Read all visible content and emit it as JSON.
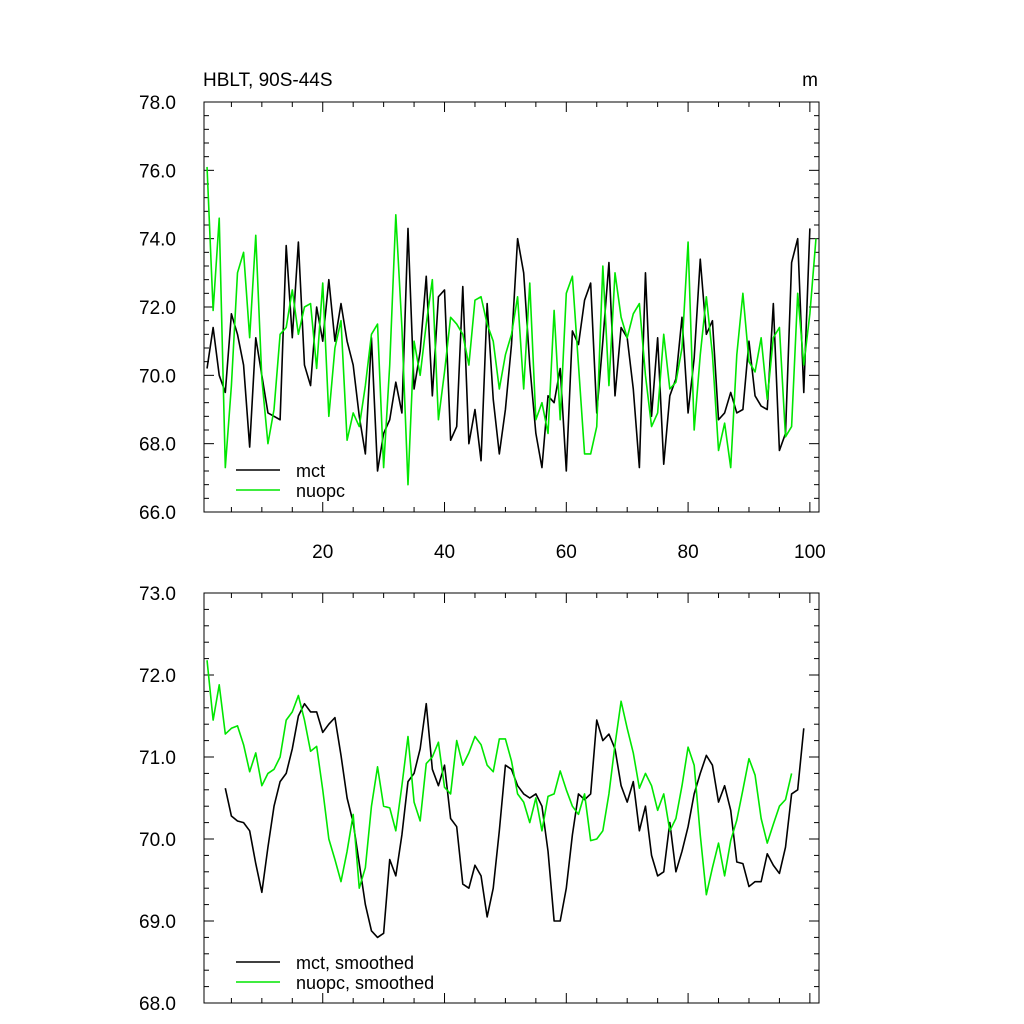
{
  "figure": {
    "title": "HBLT, 90S-44S",
    "units": "m"
  },
  "colors": {
    "mct": "#000000",
    "nuopc": "#00e600",
    "axis": "#000000"
  },
  "chart_data": [
    {
      "type": "line",
      "title": "HBLT, 90S-44S",
      "units": "m",
      "xlabel": "",
      "ylabel": "",
      "xlim": [
        0.5,
        101.5
      ],
      "ylim": [
        66.0,
        78.0
      ],
      "y_major_ticks": [
        "66.0",
        "68.0",
        "70.0",
        "72.0",
        "74.0",
        "76.0",
        "78.0"
      ],
      "x_major_ticks": [
        20,
        40,
        60,
        80,
        100
      ],
      "x_tick_labels": [
        "20",
        "40",
        "60",
        "80",
        "100"
      ],
      "grid": false,
      "legend_position": "bottom-left",
      "series": [
        {
          "name": "mct",
          "color": "#000000",
          "x_start": 1,
          "values": [
            70.2,
            71.4,
            70.0,
            69.5,
            71.8,
            71.2,
            70.3,
            67.9,
            71.1,
            70.0,
            68.9,
            68.8,
            68.7,
            73.8,
            71.1,
            73.9,
            70.3,
            69.7,
            72.0,
            71.0,
            72.8,
            71.0,
            72.1,
            71.0,
            70.3,
            68.8,
            67.7,
            71.1,
            67.2,
            68.3,
            68.7,
            69.8,
            68.9,
            74.3,
            69.6,
            70.7,
            72.9,
            69.4,
            72.3,
            72.5,
            68.1,
            68.5,
            72.6,
            68.0,
            69.0,
            67.5,
            72.1,
            69.3,
            67.7,
            69.0,
            70.9,
            74.0,
            73.0,
            70.3,
            68.3,
            67.3,
            69.4,
            69.2,
            70.2,
            67.2,
            71.3,
            70.9,
            72.2,
            72.7,
            68.9,
            71.0,
            73.3,
            69.4,
            71.4,
            71.1,
            69.6,
            67.3,
            73.0,
            68.8,
            71.1,
            67.4,
            69.4,
            69.9,
            71.7,
            68.9,
            70.5,
            73.4,
            71.2,
            71.6,
            68.7,
            68.9,
            69.5,
            68.9,
            69.0,
            71.0,
            69.4,
            69.1,
            69.0,
            72.1,
            67.8,
            68.3,
            73.3,
            74.0,
            69.5,
            74.3
          ]
        },
        {
          "name": "nuopc",
          "color": "#00e600",
          "x_start": 1,
          "values": [
            76.1,
            71.9,
            74.6,
            67.3,
            69.7,
            73.0,
            73.6,
            71.1,
            74.1,
            69.9,
            68.0,
            69.0,
            71.2,
            71.4,
            72.5,
            71.2,
            72.0,
            72.1,
            70.2,
            72.7,
            68.8,
            70.8,
            71.6,
            68.1,
            68.9,
            68.5,
            69.7,
            71.2,
            71.5,
            67.3,
            70.3,
            74.7,
            71.4,
            66.8,
            71.0,
            70.0,
            71.5,
            72.8,
            68.7,
            70.1,
            71.7,
            71.5,
            71.2,
            70.3,
            72.2,
            72.3,
            71.5,
            71.0,
            69.6,
            70.6,
            71.2,
            72.3,
            69.6,
            72.7,
            68.7,
            69.2,
            68.3,
            71.9,
            68.7,
            72.4,
            72.9,
            70.3,
            67.7,
            67.7,
            68.5,
            73.2,
            69.7,
            73.0,
            71.7,
            71.1,
            71.8,
            72.1,
            70.0,
            68.5,
            68.9,
            71.2,
            69.6,
            69.8,
            70.8,
            73.9,
            68.4,
            70.6,
            72.3,
            70.6,
            67.8,
            68.6,
            67.3,
            70.6,
            72.4,
            70.4,
            70.1,
            71.1,
            69.3,
            71.1,
            71.4,
            68.2,
            68.5,
            72.4,
            70.3,
            71.8,
            74.0
          ]
        }
      ]
    },
    {
      "type": "line",
      "title": "",
      "xlabel": "",
      "ylabel": "",
      "xlim": [
        0.5,
        101.5
      ],
      "ylim": [
        68.0,
        73.0
      ],
      "y_major_ticks": [
        "68.0",
        "69.0",
        "70.0",
        "71.0",
        "72.0",
        "73.0"
      ],
      "x_major_ticks": [
        20,
        40,
        60,
        80,
        100
      ],
      "x_tick_labels": [],
      "grid": false,
      "legend_position": "bottom-left",
      "series": [
        {
          "name": "mct, smoothed",
          "color": "#000000",
          "x_start": 4,
          "values": [
            70.62,
            70.28,
            70.22,
            70.2,
            70.1,
            69.7,
            69.35,
            69.9,
            70.4,
            70.7,
            70.8,
            71.1,
            71.5,
            71.65,
            71.55,
            71.55,
            71.3,
            71.4,
            71.48,
            71.02,
            70.5,
            70.2,
            69.7,
            69.2,
            68.88,
            68.8,
            68.85,
            69.75,
            69.55,
            70.05,
            70.7,
            70.8,
            71.1,
            71.65,
            70.85,
            70.65,
            70.9,
            70.25,
            70.15,
            69.45,
            69.4,
            69.68,
            69.55,
            69.05,
            69.4,
            70.1,
            70.9,
            70.85,
            70.65,
            70.55,
            70.5,
            70.55,
            70.4,
            69.85,
            69.0,
            69.0,
            69.4,
            70.05,
            70.55,
            70.48,
            70.55,
            71.45,
            71.2,
            71.28,
            71.1,
            70.65,
            70.45,
            70.7,
            70.1,
            70.4,
            69.8,
            69.55,
            69.6,
            70.2,
            69.6,
            69.85,
            70.15,
            70.55,
            70.8,
            71.02,
            70.9,
            70.45,
            70.65,
            70.35,
            69.72,
            69.7,
            69.42,
            69.48,
            69.48,
            69.82,
            69.68,
            69.58,
            69.9,
            70.55,
            70.6,
            71.35
          ]
        },
        {
          "name": "nuopc, smoothed",
          "color": "#00e600",
          "x_start": 1,
          "values": [
            72.18,
            71.45,
            71.88,
            71.28,
            71.35,
            71.38,
            71.15,
            70.82,
            71.05,
            70.65,
            70.8,
            70.85,
            71.0,
            71.45,
            71.55,
            71.75,
            71.45,
            71.07,
            71.13,
            70.6,
            70.0,
            69.75,
            69.48,
            69.85,
            70.3,
            69.4,
            69.65,
            70.4,
            70.88,
            70.4,
            70.38,
            70.1,
            70.65,
            71.25,
            70.45,
            70.22,
            70.92,
            71.0,
            71.18,
            70.63,
            70.55,
            71.2,
            70.9,
            71.05,
            71.25,
            71.15,
            70.9,
            70.82,
            71.22,
            71.22,
            70.95,
            70.55,
            70.45,
            70.2,
            70.5,
            70.1,
            70.52,
            70.55,
            70.83,
            70.6,
            70.4,
            70.3,
            70.55,
            69.98,
            70.0,
            70.1,
            70.55,
            71.15,
            71.68,
            71.35,
            71.05,
            70.62,
            70.8,
            70.65,
            70.35,
            70.55,
            70.1,
            70.25,
            70.65,
            71.12,
            70.9,
            70.05,
            69.32,
            69.65,
            69.95,
            69.55,
            69.98,
            70.23,
            70.6,
            70.98,
            70.78,
            70.25,
            69.95,
            70.18,
            70.4,
            70.48,
            70.8
          ]
        }
      ]
    }
  ]
}
